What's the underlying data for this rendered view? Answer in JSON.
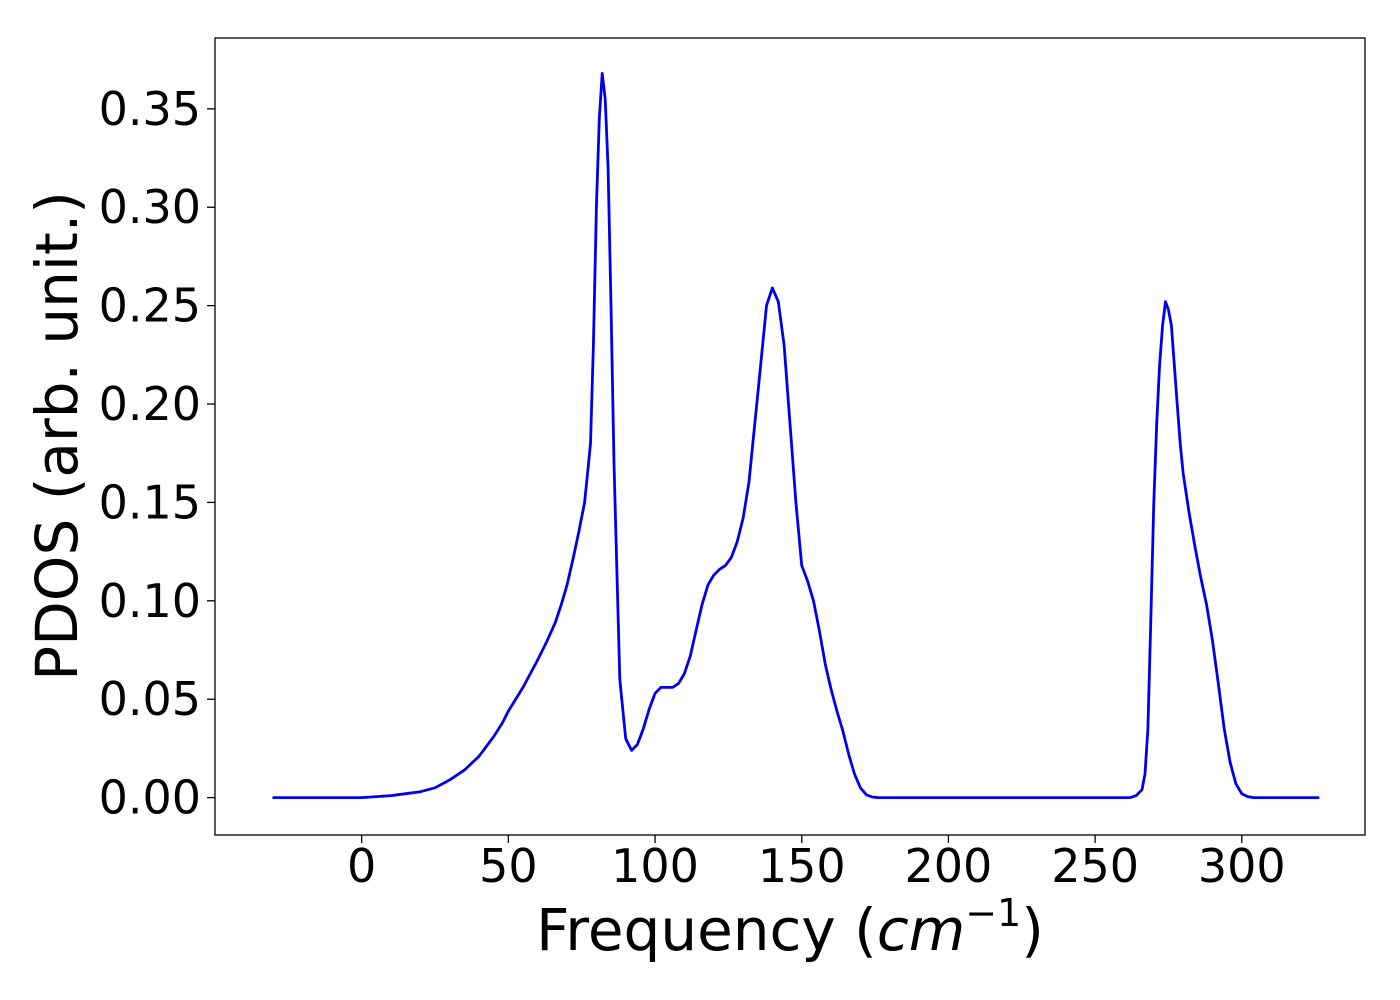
{
  "chart_data": {
    "type": "line",
    "title": "",
    "xlabel": "Frequency (cm^-1)",
    "xlabel_parts": {
      "prefix": "Frequency (",
      "unit_base": "cm",
      "unit_exp": "−1",
      "suffix": ")"
    },
    "ylabel": "PDOS (arb. unit.)",
    "xlim": [
      -50,
      342
    ],
    "ylim": [
      -0.019,
      0.386
    ],
    "xticks": [
      0,
      50,
      100,
      150,
      200,
      250,
      300
    ],
    "xtick_labels": [
      "0",
      "50",
      "100",
      "150",
      "200",
      "250",
      "300"
    ],
    "yticks": [
      0.0,
      0.05,
      0.1,
      0.15,
      0.2,
      0.25,
      0.3,
      0.35
    ],
    "ytick_labels": [
      "0.00",
      "0.05",
      "0.10",
      "0.15",
      "0.20",
      "0.25",
      "0.30",
      "0.35"
    ],
    "grid": false,
    "series": [
      {
        "color": "#0000ee",
        "x": [
          -30,
          -20,
          -10,
          0,
          5,
          10,
          15,
          20,
          25,
          30,
          35,
          40,
          45,
          48,
          50,
          55,
          60,
          63,
          66,
          68,
          70,
          72,
          74,
          76,
          77,
          78,
          79,
          80,
          81,
          82,
          83,
          84,
          85,
          86,
          88,
          90,
          92,
          94,
          96,
          98,
          100,
          102,
          104,
          106,
          108,
          110,
          112,
          114,
          116,
          118,
          120,
          122,
          124,
          126,
          128,
          130,
          132,
          134,
          136,
          138,
          140,
          142,
          144,
          146,
          148,
          150,
          152,
          154,
          156,
          158,
          160,
          162,
          164,
          166,
          168,
          170,
          172,
          174,
          176,
          180,
          200,
          220,
          240,
          260,
          262,
          264,
          266,
          267,
          268,
          269,
          270,
          271,
          272,
          273,
          274,
          275,
          276,
          277,
          278,
          279,
          280,
          282,
          284,
          286,
          288,
          290,
          292,
          294,
          296,
          298,
          300,
          302,
          304,
          306,
          310,
          320,
          326
        ],
        "y": [
          0.0,
          0.0,
          0.0,
          0.0,
          0.0005,
          0.001,
          0.002,
          0.003,
          0.005,
          0.009,
          0.014,
          0.021,
          0.031,
          0.038,
          0.044,
          0.056,
          0.07,
          0.079,
          0.089,
          0.098,
          0.108,
          0.121,
          0.135,
          0.15,
          0.165,
          0.18,
          0.23,
          0.3,
          0.345,
          0.368,
          0.355,
          0.32,
          0.25,
          0.17,
          0.06,
          0.03,
          0.024,
          0.027,
          0.035,
          0.045,
          0.053,
          0.056,
          0.056,
          0.056,
          0.058,
          0.063,
          0.072,
          0.085,
          0.098,
          0.108,
          0.113,
          0.116,
          0.118,
          0.122,
          0.13,
          0.142,
          0.16,
          0.19,
          0.22,
          0.25,
          0.259,
          0.252,
          0.23,
          0.19,
          0.15,
          0.118,
          0.11,
          0.1,
          0.085,
          0.068,
          0.055,
          0.044,
          0.034,
          0.022,
          0.012,
          0.005,
          0.0015,
          0.0003,
          0.0,
          0.0,
          0.0,
          0.0,
          0.0,
          0.0,
          0.0,
          0.001,
          0.004,
          0.012,
          0.035,
          0.09,
          0.15,
          0.19,
          0.22,
          0.24,
          0.252,
          0.248,
          0.24,
          0.22,
          0.2,
          0.18,
          0.165,
          0.145,
          0.128,
          0.112,
          0.098,
          0.08,
          0.058,
          0.035,
          0.018,
          0.007,
          0.002,
          0.0005,
          0.0,
          0.0,
          0.0,
          0.0,
          0.0
        ]
      }
    ]
  }
}
